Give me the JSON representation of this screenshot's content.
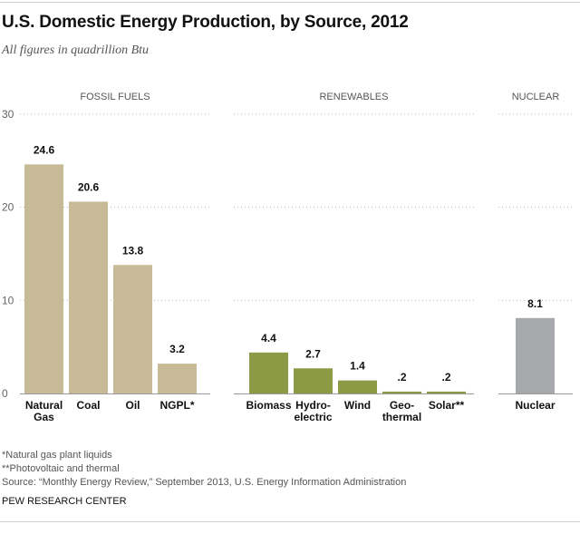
{
  "title": "U.S. Domestic Energy Production, by Source, 2012",
  "subtitle": "All figures in quadrillion Btu",
  "chart_data": {
    "type": "bar",
    "ylim": [
      0,
      30
    ],
    "yticks": [
      0,
      10,
      20,
      30
    ],
    "groups": [
      {
        "name": "FOSSIL FUELS",
        "color": "#c6bb96",
        "bars": [
          {
            "label": "Natural Gas",
            "value": 24.6,
            "value_label": "24.6"
          },
          {
            "label": "Coal",
            "value": 20.6,
            "value_label": "20.6"
          },
          {
            "label": "Oil",
            "value": 13.8,
            "value_label": "13.8"
          },
          {
            "label": "NGPL*",
            "value": 3.2,
            "value_label": "3.2"
          }
        ]
      },
      {
        "name": "RENEWABLES",
        "color": "#8c9a45",
        "bars": [
          {
            "label": "Biomass",
            "value": 4.4,
            "value_label": "4.4"
          },
          {
            "label": "Hydro-electric",
            "value": 2.7,
            "value_label": "2.7"
          },
          {
            "label": "Wind",
            "value": 1.4,
            "value_label": "1.4"
          },
          {
            "label": "Geo-thermal",
            "value": 0.2,
            "value_label": ".2"
          },
          {
            "label": "Solar**",
            "value": 0.2,
            "value_label": ".2"
          }
        ]
      },
      {
        "name": "NUCLEAR",
        "color": "#a7a8ab",
        "bars": [
          {
            "label": "Nuclear",
            "value": 8.1,
            "value_label": "8.1"
          }
        ]
      }
    ]
  },
  "footnotes": {
    "ngpl": "*Natural gas plant liquids",
    "solar": "**Photovoltaic and thermal",
    "source": "Source: “Monthly Energy Review,” September 2013, U.S. Energy Information Administration"
  },
  "credit": "PEW RESEARCH CENTER"
}
